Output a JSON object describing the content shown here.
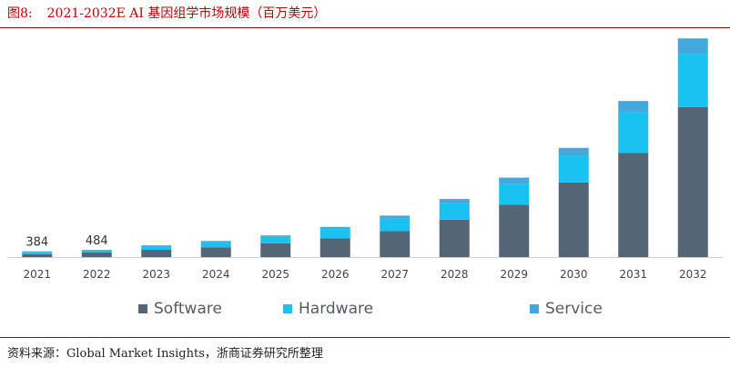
{
  "figure": {
    "number": "图8:",
    "title": "2021-2032E AI 基因组学市场规模（百万美元）"
  },
  "source": "资料来源：Global Market Insights，浙商证券研究所整理",
  "chart_data": {
    "type": "bar",
    "stacked": true,
    "categories": [
      "2021",
      "2022",
      "2023",
      "2024",
      "2025",
      "2026",
      "2027",
      "2028",
      "2029",
      "2030",
      "2031",
      "2032"
    ],
    "series": [
      {
        "name": "Software",
        "color": "#546576",
        "values": [
          200,
          300,
          480,
          650,
          920,
          1240,
          1720,
          2480,
          3470,
          4950,
          6900,
          9950
        ]
      },
      {
        "name": "Hardware",
        "color": "#1ac2f2",
        "values": [
          140,
          140,
          240,
          340,
          420,
          620,
          830,
          1080,
          1400,
          1770,
          2700,
          3490
        ]
      },
      {
        "name": "Service",
        "color": "#44a8df",
        "values": [
          44,
          44,
          60,
          80,
          100,
          140,
          200,
          290,
          400,
          520,
          750,
          1060
        ]
      }
    ],
    "data_labels": [
      {
        "category": "2021",
        "text": "384"
      },
      {
        "category": "2022",
        "text": "484"
      }
    ],
    "ylim": [
      0,
      15000
    ],
    "grid": false,
    "legend_position": "bottom"
  }
}
